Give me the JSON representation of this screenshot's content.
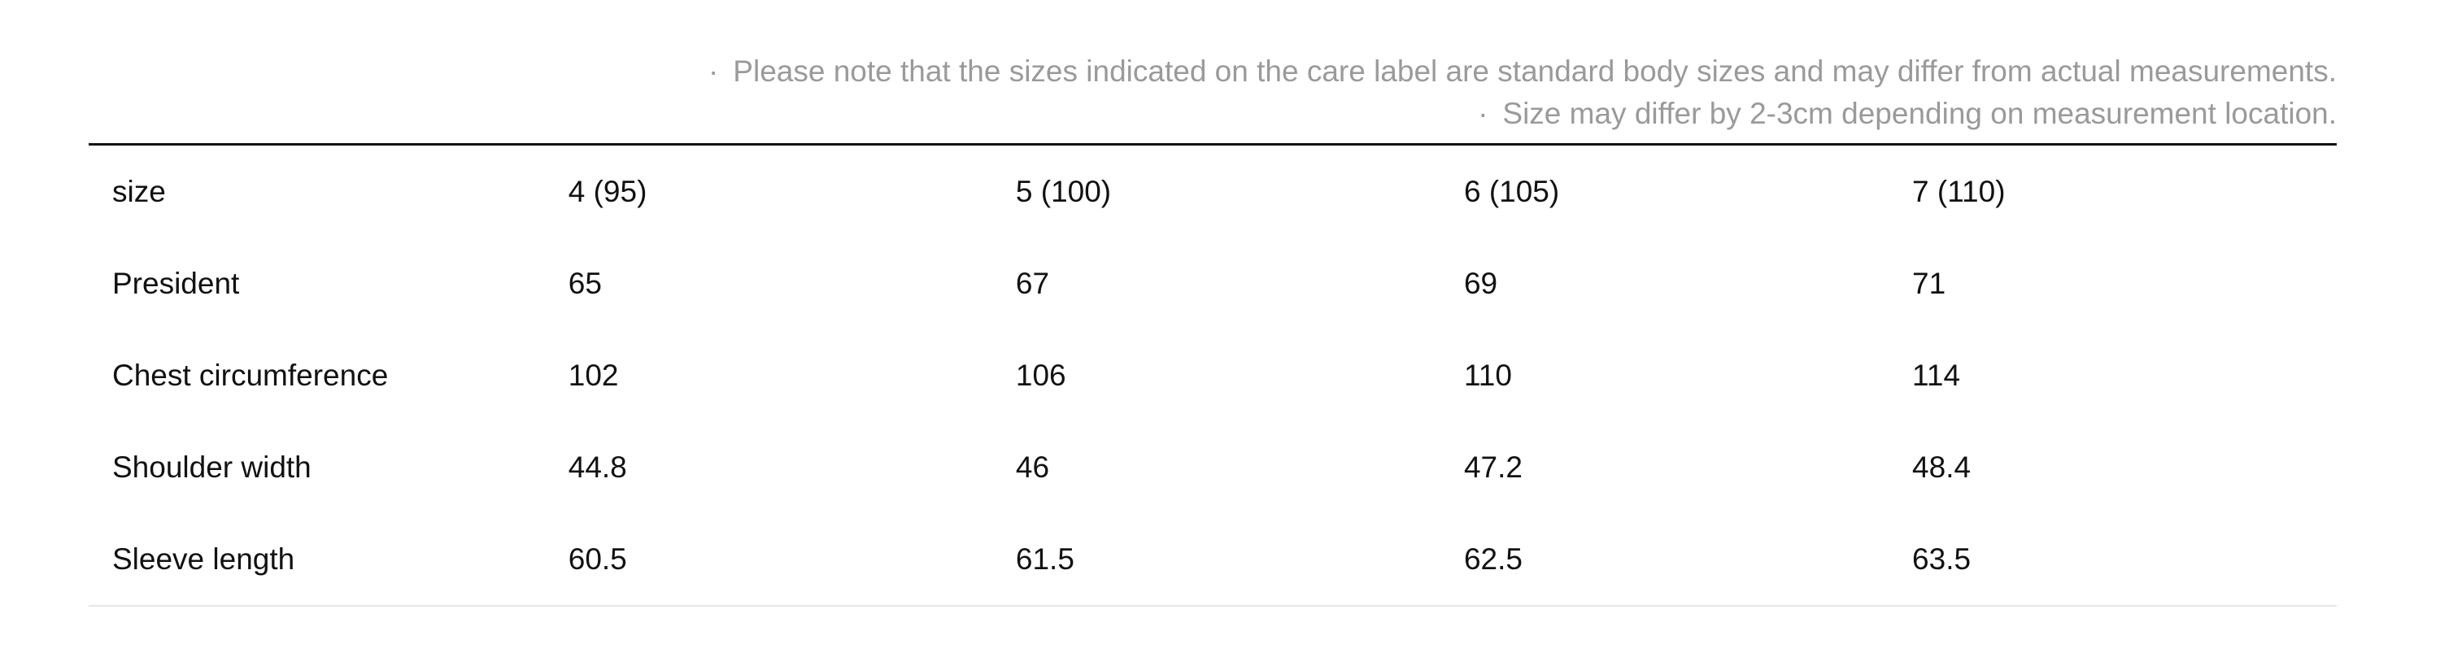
{
  "notes": [
    "Please note that the sizes indicated on the care label are standard body sizes and may differ from actual measurements.",
    "Size may differ by 2-3cm depending on measurement location."
  ],
  "table": {
    "rows": [
      [
        "size",
        "4 (95)",
        "5 (100)",
        "6 (105)",
        "7 (110)"
      ],
      [
        "President",
        65,
        67,
        69,
        71
      ],
      [
        "Chest circumference",
        102,
        106,
        110,
        114
      ],
      [
        "Shoulder width",
        44.8,
        46,
        47.2,
        48.4
      ],
      [
        "Sleeve length",
        60.5,
        61.5,
        62.5,
        63.5
      ]
    ]
  }
}
